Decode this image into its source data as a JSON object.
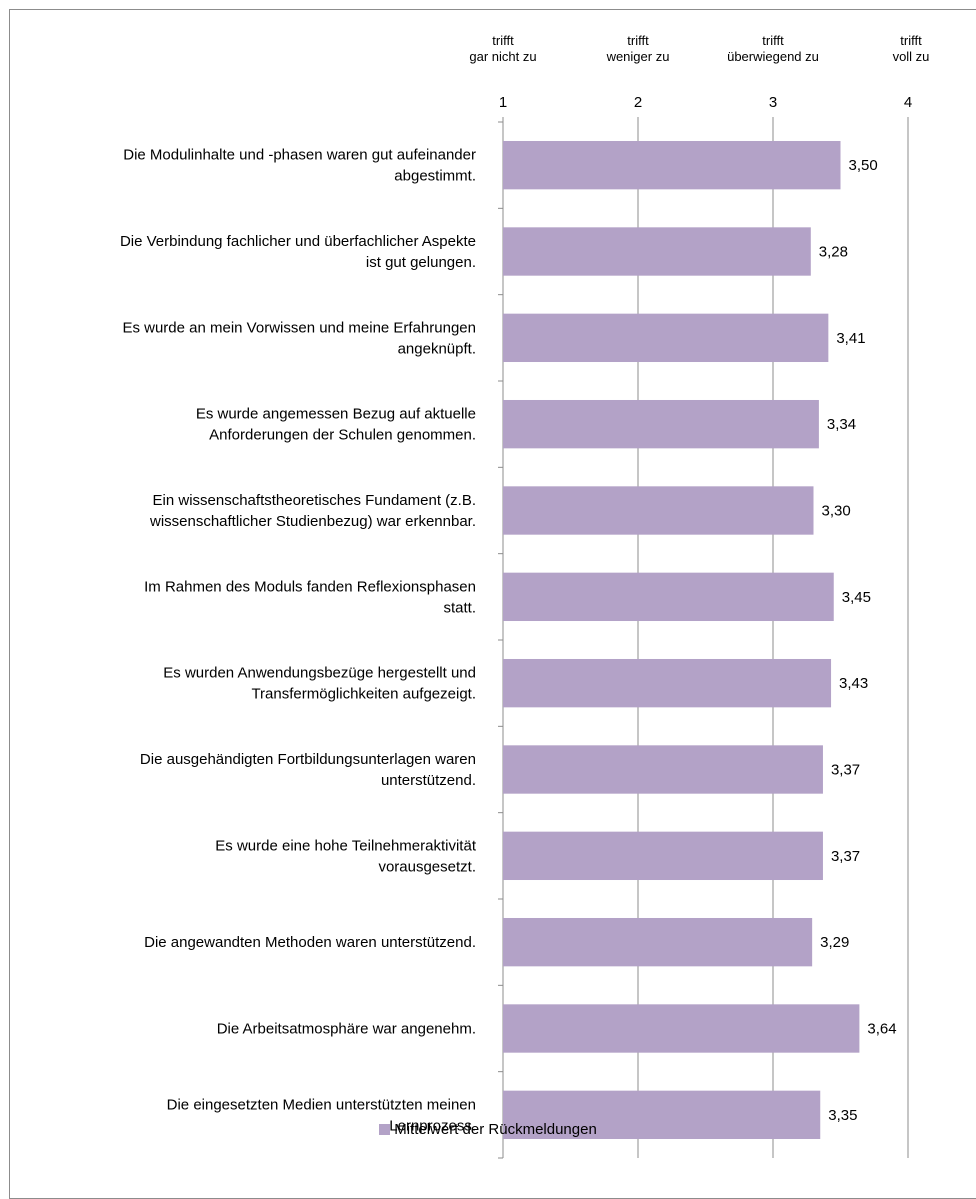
{
  "chart_data": {
    "type": "bar",
    "orientation": "horizontal",
    "xlim": [
      1,
      4
    ],
    "x_ticks": [
      "1",
      "2",
      "3",
      "4"
    ],
    "scale_labels": [
      [
        "trifft",
        "gar nicht zu"
      ],
      [
        "trifft",
        "weniger zu"
      ],
      [
        "trifft",
        "überwiegend zu"
      ],
      [
        "trifft",
        "voll zu"
      ]
    ],
    "categories": [
      [
        "Die Modulinhalte und -phasen waren gut aufeinander",
        "abgestimmt."
      ],
      [
        "Die Verbindung fachlicher und überfachlicher Aspekte",
        "ist gut gelungen."
      ],
      [
        "Es wurde an mein Vorwissen und meine Erfahrungen",
        "angeknüpft."
      ],
      [
        "Es wurde angemessen Bezug auf aktuelle",
        "Anforderungen der Schulen genommen."
      ],
      [
        "Ein wissenschaftstheoretisches Fundament (z.B.",
        "wissenschaftlicher Studienbezug) war erkennbar."
      ],
      [
        "Im Rahmen des Moduls fanden Reflexionsphasen",
        "statt."
      ],
      [
        "Es wurden Anwendungsbezüge hergestellt und",
        "Transfermöglichkeiten aufgezeigt."
      ],
      [
        "Die ausgehändigten Fortbildungsunterlagen waren",
        "unterstützend."
      ],
      [
        "Es wurde eine hohe Teilnehmeraktivität",
        "vorausgesetzt."
      ],
      [
        "Die angewandten Methoden waren unterstützend."
      ],
      [
        "Die Arbeitsatmosphäre war angenehm."
      ],
      [
        "Die eingesetzten Medien unterstützten meinen",
        "Lernprozess."
      ]
    ],
    "values": [
      3.5,
      3.28,
      3.41,
      3.34,
      3.3,
      3.45,
      3.43,
      3.37,
      3.37,
      3.29,
      3.64,
      3.35
    ],
    "value_labels": [
      "3,50",
      "3,28",
      "3,41",
      "3,34",
      "3,30",
      "3,45",
      "3,43",
      "3,37",
      "3,37",
      "3,29",
      "3,64",
      "3,35"
    ],
    "series": [
      {
        "name": "Mittelwert der Rückmeldungen",
        "color": "#b3a2c7"
      }
    ],
    "gridlines": true,
    "legend_position": "bottom"
  }
}
